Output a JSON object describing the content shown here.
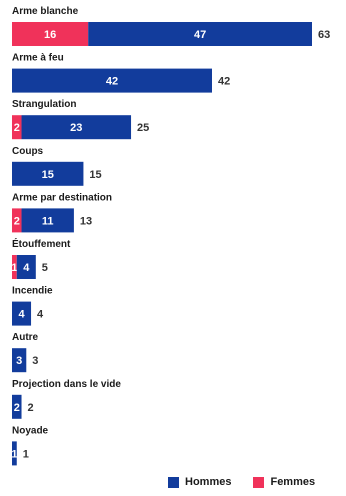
{
  "chart_data": {
    "type": "bar",
    "orientation": "horizontal",
    "stacked": true,
    "categories": [
      "Arme blanche",
      "Arme à feu",
      "Strangulation",
      "Coups",
      "Arme par destination",
      "Étouffement",
      "Incendie",
      "Autre",
      "Projection dans le vide",
      "Noyade"
    ],
    "series": [
      {
        "name": "Femmes",
        "color": "#f0325a",
        "values": [
          16,
          0,
          2,
          0,
          2,
          1,
          0,
          0,
          0,
          0
        ]
      },
      {
        "name": "Hommes",
        "color": "#123c9c",
        "values": [
          47,
          42,
          23,
          15,
          11,
          4,
          4,
          3,
          2,
          1
        ]
      }
    ],
    "totals": [
      63,
      42,
      25,
      15,
      13,
      5,
      4,
      3,
      2,
      1
    ],
    "xlim": [
      0,
      63
    ],
    "grid": false,
    "legend_position": "bottom-right"
  }
}
